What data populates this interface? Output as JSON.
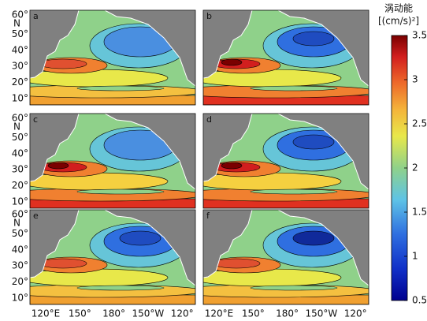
{
  "colorbar": {
    "title": "涡动能",
    "unit": "[(cm/s)²]",
    "range": [
      0.5,
      3.5
    ],
    "ticks": [
      0.5,
      1,
      1.5,
      2,
      2.5,
      3,
      3.5
    ]
  },
  "panels": [
    {
      "label": "a"
    },
    {
      "label": "b"
    },
    {
      "label": "c"
    },
    {
      "label": "d"
    },
    {
      "label": "e"
    },
    {
      "label": "f"
    }
  ],
  "lat_ticks": [
    "60°",
    "50°",
    "40°",
    "30°",
    "20°",
    "10°"
  ],
  "lat_hemisphere": "N",
  "lon_ticks": [
    "120°E",
    "150°",
    "180°",
    "150°W",
    "120°"
  ]
}
